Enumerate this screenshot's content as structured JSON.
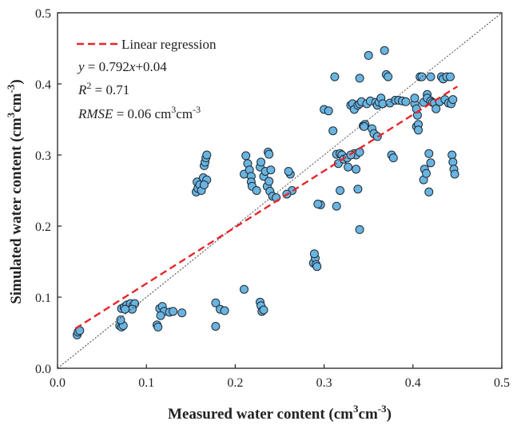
{
  "chart_data": {
    "type": "scatter",
    "xlabel": "Measured water content (cm",
    "xlabel_sup": "3",
    "xlabel_end": "cm",
    "xlabel_sup2": "-3",
    "xlabel_close": ")",
    "ylabel": "Simulated water content (cm",
    "ylabel_sup": "3",
    "ylabel_end": "cm",
    "ylabel_sup2": "-3",
    "ylabel_close": ")",
    "xlim": [
      0,
      0.5
    ],
    "ylim": [
      0,
      0.5
    ],
    "x_ticks": [
      "0.0",
      "0.1",
      "0.2",
      "0.3",
      "0.4",
      "0.5"
    ],
    "y_ticks": [
      "0.0",
      "0.1",
      "0.2",
      "0.3",
      "0.4",
      "0.5"
    ],
    "legend": {
      "placement": "top-left",
      "regression_label": "Linear regression",
      "equation_y": "y",
      "equation_rest": " = 0.792",
      "equation_x": "x",
      "equation_end": "+0.04",
      "r2_r": "R",
      "r2_sup": "2",
      "r2_value": " = 0.71",
      "rmse_label": "RMSE",
      "rmse_value": " = 0.06 cm",
      "rmse_sup": "3",
      "rmse_unit": "cm",
      "rmse_sup2": "-3"
    },
    "regression": {
      "slope": 0.792,
      "intercept": 0.04,
      "x_range": [
        0.02,
        0.45
      ],
      "color": "#e8262b"
    },
    "one_to_one_line": {
      "from": [
        0,
        0
      ],
      "to": [
        0.5,
        0.5
      ]
    },
    "marker": {
      "fill": "#6ab4e0",
      "edge": "#1e2a36"
    },
    "points": [
      [
        0.022,
        0.047
      ],
      [
        0.023,
        0.051
      ],
      [
        0.025,
        0.053
      ],
      [
        0.07,
        0.06
      ],
      [
        0.072,
        0.058
      ],
      [
        0.074,
        0.06
      ],
      [
        0.071,
        0.068
      ],
      [
        0.072,
        0.084
      ],
      [
        0.075,
        0.086
      ],
      [
        0.078,
        0.089
      ],
      [
        0.082,
        0.091
      ],
      [
        0.085,
        0.088
      ],
      [
        0.087,
        0.091
      ],
      [
        0.084,
        0.083
      ],
      [
        0.076,
        0.083
      ],
      [
        0.112,
        0.061
      ],
      [
        0.113,
        0.058
      ],
      [
        0.115,
        0.084
      ],
      [
        0.118,
        0.087
      ],
      [
        0.12,
        0.08
      ],
      [
        0.126,
        0.079
      ],
      [
        0.13,
        0.08
      ],
      [
        0.14,
        0.078
      ],
      [
        0.116,
        0.074
      ],
      [
        0.178,
        0.092
      ],
      [
        0.178,
        0.059
      ],
      [
        0.183,
        0.083
      ],
      [
        0.188,
        0.081
      ],
      [
        0.21,
        0.111
      ],
      [
        0.228,
        0.093
      ],
      [
        0.229,
        0.088
      ],
      [
        0.23,
        0.08
      ],
      [
        0.232,
        0.082
      ],
      [
        0.156,
        0.248
      ],
      [
        0.158,
        0.253
      ],
      [
        0.157,
        0.262
      ],
      [
        0.16,
        0.258
      ],
      [
        0.162,
        0.25
      ],
      [
        0.164,
        0.268
      ],
      [
        0.165,
        0.285
      ],
      [
        0.166,
        0.29
      ],
      [
        0.167,
        0.296
      ],
      [
        0.168,
        0.3
      ],
      [
        0.168,
        0.265
      ],
      [
        0.165,
        0.258
      ],
      [
        0.21,
        0.273
      ],
      [
        0.212,
        0.299
      ],
      [
        0.214,
        0.288
      ],
      [
        0.216,
        0.279
      ],
      [
        0.218,
        0.27
      ],
      [
        0.218,
        0.262
      ],
      [
        0.219,
        0.256
      ],
      [
        0.224,
        0.25
      ],
      [
        0.228,
        0.283
      ],
      [
        0.229,
        0.29
      ],
      [
        0.232,
        0.27
      ],
      [
        0.234,
        0.277
      ],
      [
        0.236,
        0.256
      ],
      [
        0.237,
        0.304
      ],
      [
        0.238,
        0.301
      ],
      [
        0.238,
        0.263
      ],
      [
        0.239,
        0.249
      ],
      [
        0.24,
        0.279
      ],
      [
        0.242,
        0.242
      ],
      [
        0.246,
        0.24
      ],
      [
        0.262,
        0.273
      ],
      [
        0.264,
        0.25
      ],
      [
        0.26,
        0.277
      ],
      [
        0.258,
        0.245
      ],
      [
        0.288,
        0.148
      ],
      [
        0.29,
        0.155
      ],
      [
        0.291,
        0.146
      ],
      [
        0.289,
        0.161
      ],
      [
        0.292,
        0.143
      ],
      [
        0.296,
        0.23
      ],
      [
        0.293,
        0.231
      ],
      [
        0.3,
        0.364
      ],
      [
        0.305,
        0.362
      ],
      [
        0.31,
        0.334
      ],
      [
        0.312,
        0.41
      ],
      [
        0.314,
        0.301
      ],
      [
        0.316,
        0.288
      ],
      [
        0.318,
        0.302
      ],
      [
        0.32,
        0.3
      ],
      [
        0.322,
        0.294
      ],
      [
        0.318,
        0.25
      ],
      [
        0.314,
        0.228
      ],
      [
        0.326,
        0.296
      ],
      [
        0.327,
        0.283
      ],
      [
        0.33,
        0.37
      ],
      [
        0.332,
        0.372
      ],
      [
        0.334,
        0.364
      ],
      [
        0.334,
        0.302
      ],
      [
        0.336,
        0.3
      ],
      [
        0.338,
        0.37
      ],
      [
        0.34,
        0.372
      ],
      [
        0.34,
        0.304
      ],
      [
        0.34,
        0.195
      ],
      [
        0.338,
        0.252
      ],
      [
        0.342,
        0.375
      ],
      [
        0.344,
        0.341
      ],
      [
        0.346,
        0.343
      ],
      [
        0.348,
        0.372
      ],
      [
        0.35,
        0.44
      ],
      [
        0.352,
        0.376
      ],
      [
        0.354,
        0.337
      ],
      [
        0.356,
        0.33
      ],
      [
        0.358,
        0.374
      ],
      [
        0.36,
        0.326
      ],
      [
        0.36,
        0.37
      ],
      [
        0.362,
        0.374
      ],
      [
        0.364,
        0.38
      ],
      [
        0.366,
        0.372
      ],
      [
        0.368,
        0.447
      ],
      [
        0.37,
        0.413
      ],
      [
        0.372,
        0.41
      ],
      [
        0.374,
        0.373
      ],
      [
        0.34,
        0.408
      ],
      [
        0.345,
        0.34
      ],
      [
        0.336,
        0.28
      ],
      [
        0.33,
        0.3
      ],
      [
        0.376,
        0.3
      ],
      [
        0.378,
        0.296
      ],
      [
        0.38,
        0.377
      ],
      [
        0.384,
        0.377
      ],
      [
        0.388,
        0.376
      ],
      [
        0.392,
        0.375
      ],
      [
        0.402,
        0.372
      ],
      [
        0.404,
        0.34
      ],
      [
        0.405,
        0.356
      ],
      [
        0.406,
        0.343
      ],
      [
        0.406,
        0.335
      ],
      [
        0.408,
        0.41
      ],
      [
        0.41,
        0.41
      ],
      [
        0.412,
        0.374
      ],
      [
        0.412,
        0.265
      ],
      [
        0.413,
        0.28
      ],
      [
        0.415,
        0.274
      ],
      [
        0.416,
        0.385
      ],
      [
        0.416,
        0.38
      ],
      [
        0.418,
        0.302
      ],
      [
        0.418,
        0.248
      ],
      [
        0.42,
        0.376
      ],
      [
        0.42,
        0.289
      ],
      [
        0.422,
        0.374
      ],
      [
        0.424,
        0.373
      ],
      [
        0.426,
        0.365
      ],
      [
        0.43,
        0.375
      ],
      [
        0.432,
        0.41
      ],
      [
        0.434,
        0.407
      ],
      [
        0.436,
        0.378
      ],
      [
        0.438,
        0.41
      ],
      [
        0.44,
        0.373
      ],
      [
        0.442,
        0.41
      ],
      [
        0.443,
        0.372
      ],
      [
        0.444,
        0.3
      ],
      [
        0.445,
        0.29
      ],
      [
        0.446,
        0.28
      ],
      [
        0.447,
        0.273
      ],
      [
        0.445,
        0.378
      ],
      [
        0.402,
        0.38
      ],
      [
        0.404,
        0.365
      ],
      [
        0.42,
        0.41
      ]
    ]
  }
}
